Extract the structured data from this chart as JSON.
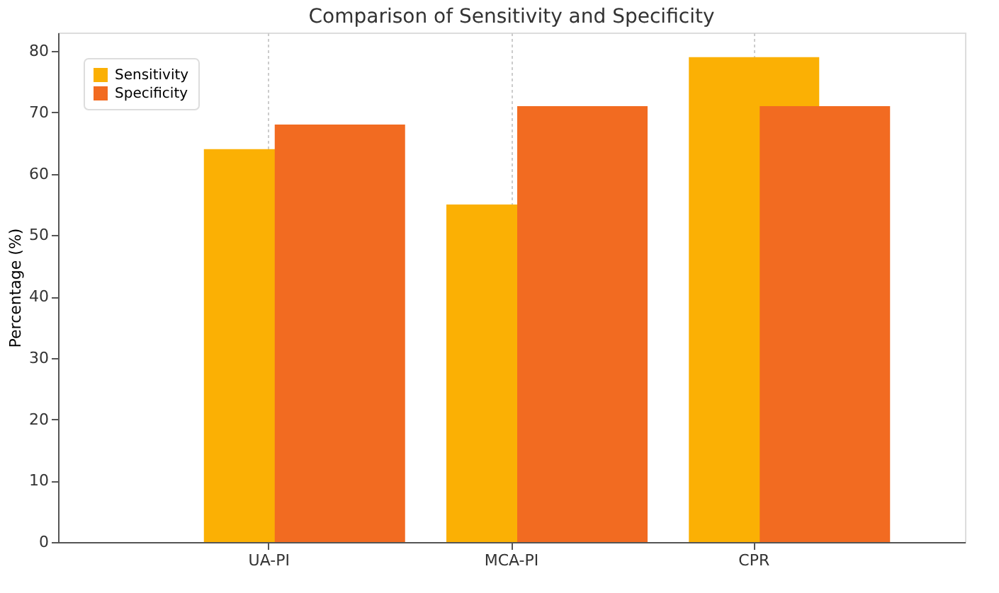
{
  "chart_data": {
    "type": "bar",
    "title": "Comparison of Sensitivity and Specificity",
    "ylabel": "Percentage (%)",
    "categories": [
      "UA-PI",
      "MCA-PI",
      "CPR"
    ],
    "series": [
      {
        "name": "Sensitivity",
        "color": "#fbb004",
        "values": [
          64,
          55,
          79
        ]
      },
      {
        "name": "Specificity",
        "color": "#f26b21",
        "values": [
          68,
          71,
          71
        ]
      }
    ],
    "ylim": [
      0,
      83
    ],
    "yticks": [
      0,
      10,
      20,
      30,
      40,
      50,
      60,
      70,
      80
    ],
    "grid": "x",
    "legend": "top left"
  }
}
